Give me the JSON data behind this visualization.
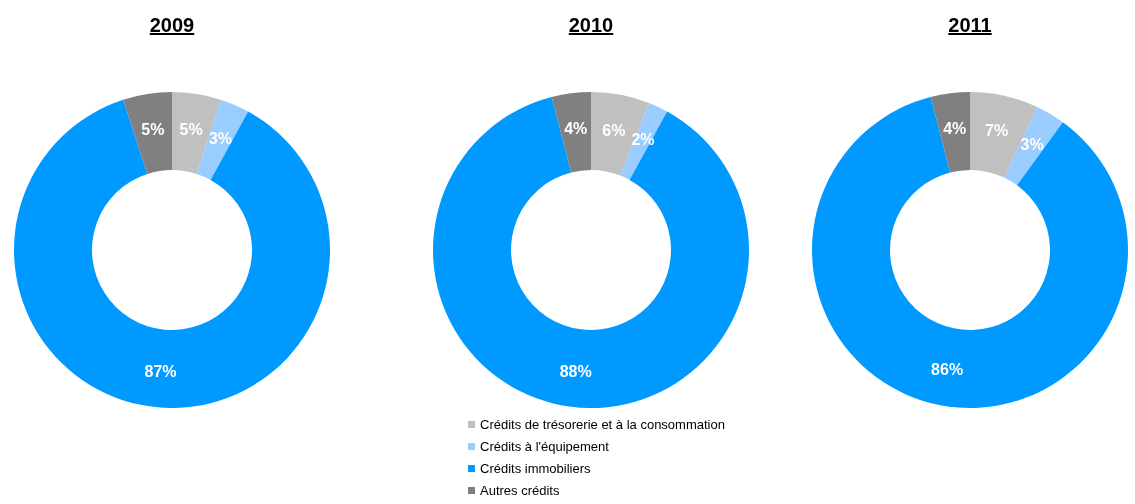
{
  "chart_data": [
    {
      "type": "donut",
      "title": "2009",
      "categories": [
        null,
        null,
        null,
        null
      ],
      "values": [
        5,
        3,
        87,
        5
      ],
      "colors": [
        "#c0c0c0",
        "#99ccff",
        "#0099ff",
        "#808080"
      ],
      "value_labels": [
        "5%",
        "3%",
        "87%",
        "5%"
      ],
      "legend": false
    },
    {
      "type": "donut",
      "title": "2010",
      "categories": [
        "Crédits de trésorerie et à la consommation",
        "Crédits à l'équipement",
        "Crédits immobiliers",
        "Autres crédits"
      ],
      "values": [
        6,
        2,
        88,
        4
      ],
      "colors": [
        "#c0c0c0",
        "#99ccff",
        "#0099ff",
        "#808080"
      ],
      "value_labels": [
        "6%",
        "2%",
        "88%",
        "4%"
      ],
      "legend": "bottom"
    },
    {
      "type": "donut",
      "title": "2011",
      "categories": [
        null,
        null,
        null,
        null
      ],
      "values": [
        7,
        3,
        86,
        4
      ],
      "colors": [
        "#c0c0c0",
        "#99ccff",
        "#0099ff",
        "#808080"
      ],
      "value_labels": [
        "7%",
        "3%",
        "86%",
        "4%"
      ],
      "legend": false
    }
  ]
}
